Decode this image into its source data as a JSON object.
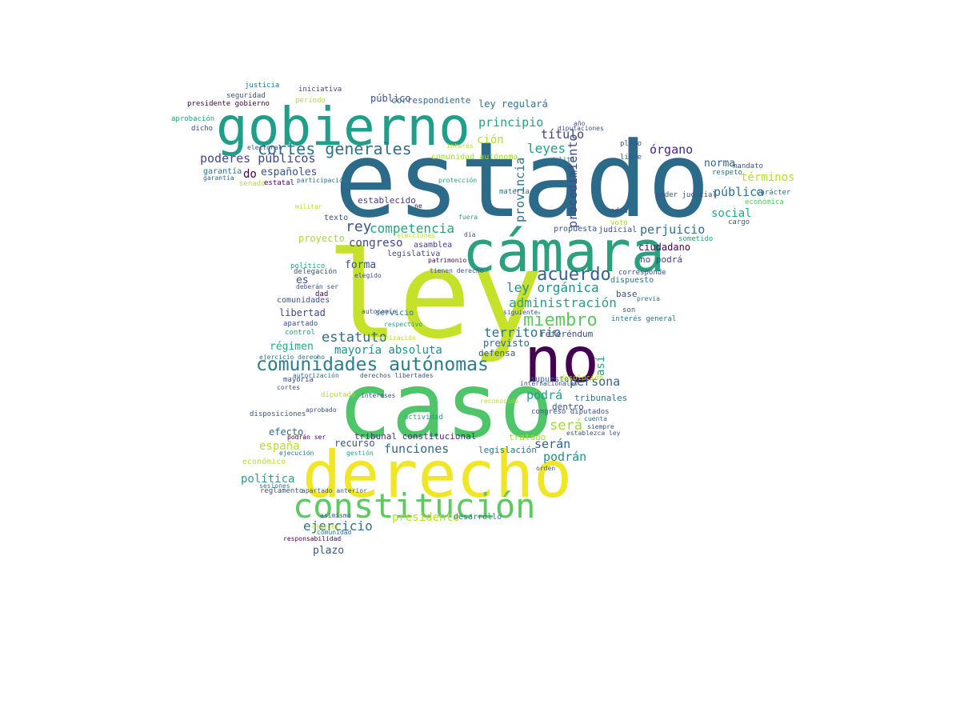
{
  "wordcloud": {
    "words": [
      {
        "text": "estado",
        "color": "#2c6a8a"
      },
      {
        "text": "caso",
        "color": "#4fc56a"
      },
      {
        "text": "ley",
        "color": "#c6e12a"
      },
      {
        "text": "derecho",
        "color": "#f1e625"
      },
      {
        "text": "cámara",
        "color": "#2aa07f"
      },
      {
        "text": "gobierno",
        "color": "#1f9e89"
      },
      {
        "text": "no",
        "color": "#440154"
      },
      {
        "text": "constitución",
        "color": "#5ec962"
      },
      {
        "text": "comunidades autónomas",
        "color": "#2c7d8c"
      },
      {
        "text": "cortes generales",
        "color": "#2c728e"
      },
      {
        "text": "miembro",
        "color": "#5ec962"
      },
      {
        "text": "acuerdo",
        "color": "#355f8d"
      },
      {
        "text": "poderes públicos",
        "color": "#404788"
      },
      {
        "text": "rey",
        "color": "#39568c"
      },
      {
        "text": "competencia",
        "color": "#2aa07f"
      },
      {
        "text": "ley orgánica",
        "color": "#21918c"
      },
      {
        "text": "administración",
        "color": "#2aa07f"
      },
      {
        "text": "territorio",
        "color": "#2c728e"
      },
      {
        "text": "estatuto",
        "color": "#31688e"
      },
      {
        "text": "mayoría absoluta",
        "color": "#21918c"
      },
      {
        "text": "persona",
        "color": "#33638d"
      },
      {
        "text": "funciones",
        "color": "#31688e"
      },
      {
        "text": "podrán",
        "color": "#21918c"
      },
      {
        "text": "serán",
        "color": "#33638d"
      },
      {
        "text": "será",
        "color": "#a0da39"
      },
      {
        "text": "podrá",
        "color": "#1f9e89"
      },
      {
        "text": "ejercicio",
        "color": "#2c728e"
      },
      {
        "text": "plazo",
        "color": "#39568c"
      },
      {
        "text": "presidente",
        "color": "#b5de2b"
      },
      {
        "text": "desarrollo",
        "color": "#2a788e"
      },
      {
        "text": "principio",
        "color": "#2aa07f"
      },
      {
        "text": "título",
        "color": "#433e85"
      },
      {
        "text": "leyes",
        "color": "#1f9e89"
      },
      {
        "text": "norma",
        "color": "#33638d"
      },
      {
        "text": "pública",
        "color": "#2c728e"
      },
      {
        "text": "social",
        "color": "#22a884"
      },
      {
        "text": "órgano",
        "color": "#482878"
      },
      {
        "text": "términos",
        "color": "#b5de2b"
      },
      {
        "text": "perjuicio",
        "color": "#2c728e"
      },
      {
        "text": "ley regulará",
        "color": "#2c728e"
      },
      {
        "text": "público",
        "color": "#3b528b"
      },
      {
        "text": "correspondiente",
        "color": "#31688e"
      },
      {
        "text": "españoles",
        "color": "#3b528b"
      },
      {
        "text": "congreso",
        "color": "#3e4989"
      },
      {
        "text": "proyecto",
        "color": "#a8db34"
      },
      {
        "text": "forma",
        "color": "#3b528b"
      },
      {
        "text": "régimen",
        "color": "#22a884"
      },
      {
        "text": "españa",
        "color": "#b5de2b"
      },
      {
        "text": "política",
        "color": "#2aa07f"
      },
      {
        "text": "provincia",
        "color": "#2c728e"
      },
      {
        "text": "procedimiento",
        "color": "#3e4989"
      },
      {
        "text": "así",
        "color": "#2aa07f"
      },
      {
        "text": "previsto",
        "color": "#33638d"
      },
      {
        "text": "defensa",
        "color": "#39568c"
      },
      {
        "text": "tribunal constitucional",
        "color": "#482878"
      },
      {
        "text": "recurso",
        "color": "#3b528b"
      },
      {
        "text": "efecto",
        "color": "#31688e"
      },
      {
        "text": "libertad",
        "color": "#3e4989"
      },
      {
        "text": "comunidades",
        "color": "#3b528b"
      },
      {
        "text": "do",
        "color": "#440154"
      },
      {
        "text": "es",
        "color": "#3b528b"
      },
      {
        "text": "ción",
        "color": "#b5de2b"
      },
      {
        "text": "comunidad autónoma",
        "color": "#a0da39"
      },
      {
        "text": "asamblea",
        "color": "#433e85"
      },
      {
        "text": "legislativa",
        "color": "#3e4989"
      },
      {
        "text": "establecido",
        "color": "#433e85"
      },
      {
        "text": "servicio",
        "color": "#2c728e"
      },
      {
        "text": "tratado",
        "color": "#a8db34"
      },
      {
        "text": "legislación",
        "color": "#2a788e"
      },
      {
        "text": "tribunales",
        "color": "#2c728e"
      },
      {
        "text": "dentro",
        "color": "#3b528b"
      },
      {
        "text": "congreso diputados",
        "color": "#3b528b"
      },
      {
        "text": "supuesto",
        "color": "#33638d"
      },
      {
        "text": "internacionales",
        "color": "#3b528b"
      },
      {
        "text": "disolución",
        "color": "#b5de2b"
      },
      {
        "text": "referéndum",
        "color": "#3e4989"
      },
      {
        "text": "interés general",
        "color": "#2c728e"
      },
      {
        "text": "base",
        "color": "#3b528b"
      },
      {
        "text": "ciudadano",
        "color": "#440154"
      },
      {
        "text": "no podrá",
        "color": "#433e85"
      },
      {
        "text": "dispuesto",
        "color": "#2c728e"
      },
      {
        "text": "corresponde",
        "color": "#3b528b"
      },
      {
        "text": "judicial",
        "color": "#3e4989"
      },
      {
        "text": "propuesta",
        "color": "#3b528b"
      },
      {
        "text": "garantía",
        "color": "#2c728e"
      },
      {
        "text": "senado",
        "color": "#b5de2b"
      },
      {
        "text": "estatal",
        "color": "#440154"
      },
      {
        "text": "texto",
        "color": "#3b528b"
      },
      {
        "text": "materia",
        "color": "#2c728e"
      },
      {
        "text": "mandato",
        "color": "#3b528b"
      },
      {
        "text": "carácter",
        "color": "#2c728e"
      },
      {
        "text": "pleno",
        "color": "#3b528b"
      },
      {
        "text": "libre",
        "color": "#3b528b"
      },
      {
        "text": "edad",
        "color": "#3b528b"
      },
      {
        "text": "voto",
        "color": "#a0da39"
      },
      {
        "text": "sometido",
        "color": "#2aa07f"
      },
      {
        "text": "cargo",
        "color": "#3b528b"
      },
      {
        "text": "respeto",
        "color": "#2c728e"
      },
      {
        "text": "económica",
        "color": "#5ec962"
      },
      {
        "text": "poder judicial",
        "color": "#3b528b"
      },
      {
        "text": "aprobación",
        "color": "#2aa07f"
      },
      {
        "text": "presidente gobierno",
        "color": "#440154"
      },
      {
        "text": "seguridad",
        "color": "#3b528b"
      },
      {
        "text": "dicho",
        "color": "#3b528b"
      },
      {
        "text": "iniciativa",
        "color": "#3e4989"
      },
      {
        "text": "período",
        "color": "#b5de2b"
      },
      {
        "text": "justicia",
        "color": "#2c728e"
      },
      {
        "text": "garantía ",
        "color": "#31688e"
      },
      {
        "text": "electoral",
        "color": "#3b528b"
      },
      {
        "text": "ejercer",
        "color": "#b5de2b"
      },
      {
        "text": "comunidad",
        "color": "#2c728e"
      },
      {
        "text": "responsabilidad",
        "color": "#440154"
      },
      {
        "text": "asimismo",
        "color": "#3b528b"
      },
      {
        "text": "ejecución",
        "color": "#2c728e"
      },
      {
        "text": "gestión",
        "color": "#2aa07f"
      },
      {
        "text": "económico",
        "color": "#b5de2b"
      },
      {
        "text": "reglamento",
        "color": "#3b528b"
      },
      {
        "text": "sesiones",
        "color": "#2c728e"
      },
      {
        "text": "apartado anterior",
        "color": "#3b528b"
      },
      {
        "text": "podrán ser",
        "color": "#440154"
      },
      {
        "text": "disposiciones",
        "color": "#3b528b"
      },
      {
        "text": "aprobado",
        "color": "#3b528b"
      },
      {
        "text": "mayoría",
        "color": "#3b528b"
      },
      {
        "text": "cortes",
        "color": "#3b528b"
      },
      {
        "text": "diputado",
        "color": "#b5de2b"
      },
      {
        "text": "intereses",
        "color": "#3b528b"
      },
      {
        "text": "actividad",
        "color": "#2aa07f"
      },
      {
        "text": "derechos libertades",
        "color": "#3b528b"
      },
      {
        "text": "autorización",
        "color": "#2c728e"
      },
      {
        "text": "control",
        "color": "#2aa07f"
      },
      {
        "text": "apartado",
        "color": "#3b528b"
      },
      {
        "text": "ejercicio derecho",
        "color": "#2c728e"
      },
      {
        "text": "político",
        "color": "#2aa07f"
      },
      {
        "text": "delegación",
        "color": "#3b528b"
      },
      {
        "text": "deberán ser",
        "color": "#3b528b"
      },
      {
        "text": "dad",
        "color": "#440154"
      },
      {
        "text": "elegido",
        "color": "#3b528b"
      },
      {
        "text": "tienen derecho",
        "color": "#3b528b"
      },
      {
        "text": "autonomía",
        "color": "#3b528b"
      },
      {
        "text": "respectivo",
        "color": "#2aa07f"
      },
      {
        "text": "organización",
        "color": "#b5de2b"
      },
      {
        "text": "siguiente",
        "color": "#3b528b"
      },
      {
        "text": "orden",
        "color": "#3b528b"
      },
      {
        "text": "establezca ley",
        "color": "#3b528b"
      },
      {
        "text": "siempre",
        "color": "#3b528b"
      },
      {
        "text": "cuenta",
        "color": "#2c728e"
      },
      {
        "text": "son",
        "color": "#3b528b"
      },
      {
        "text": "previa",
        "color": "#2c728e"
      },
      {
        "text": "reconocido",
        "color": "#b5de2b"
      },
      {
        "text": "protección",
        "color": "#2aa07f"
      },
      {
        "text": "participación",
        "color": "#2c728e"
      },
      {
        "text": "militar",
        "color": "#b5de2b"
      },
      {
        "text": "patrimonio",
        "color": "#440154"
      },
      {
        "text": "elecciones",
        "color": "#b5de2b"
      },
      {
        "text": "ne",
        "color": "#440154"
      },
      {
        "text": "día",
        "color": "#3b528b"
      },
      {
        "text": "fuera",
        "color": "#2aa07f"
      },
      {
        "text": "interés",
        "color": "#b5de2b"
      },
      {
        "text": "delito",
        "color": "#2c728e"
      },
      {
        "text": "año",
        "color": "#3b528b"
      },
      {
        "text": "diputaciones",
        "color": "#3b528b"
      }
    ]
  }
}
